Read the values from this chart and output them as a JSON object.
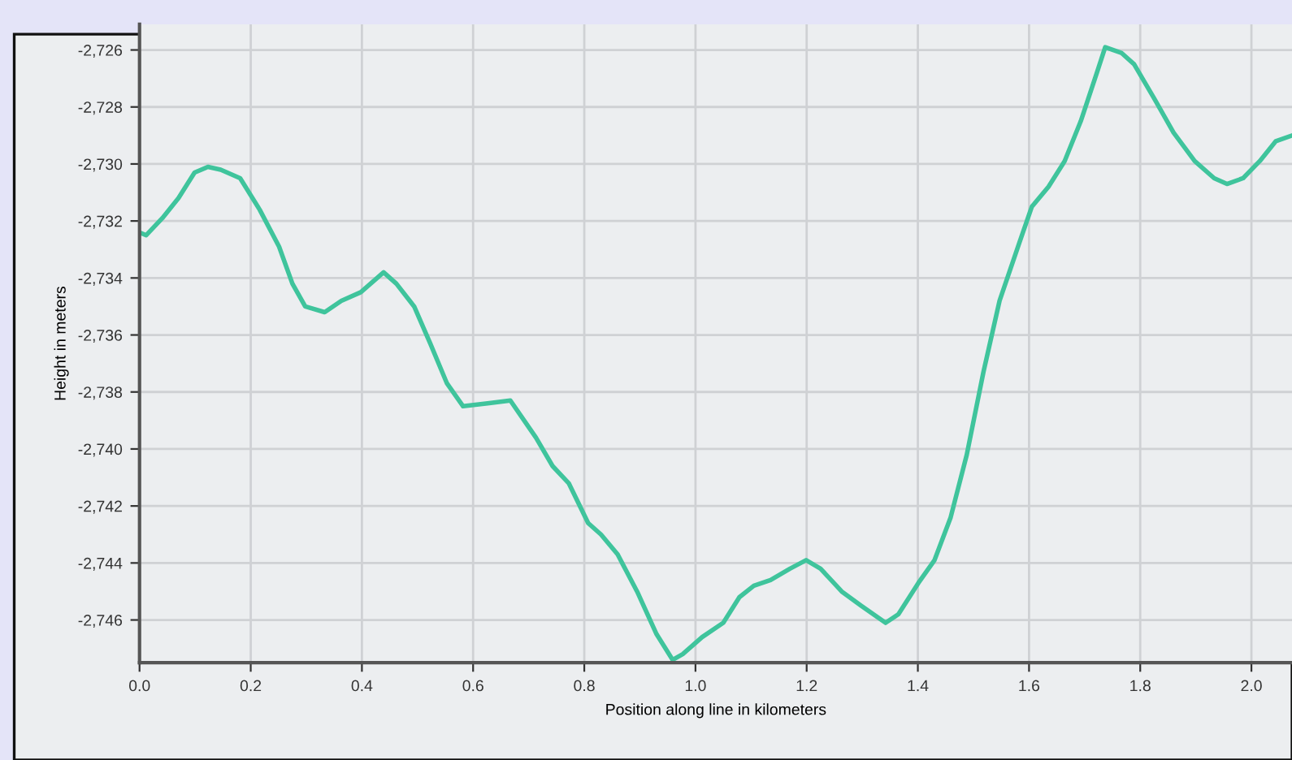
{
  "chart_data": {
    "type": "line",
    "xlabel": "Position along line in kilometers",
    "ylabel": "Height in meters",
    "xlim": [
      0,
      2.073
    ],
    "ylim": [
      -2747.5,
      -2725.1
    ],
    "xticks": [
      {
        "value": 0,
        "label": "0.0"
      },
      0.2,
      0.4,
      0.6,
      0.8,
      {
        "value": 1,
        "label": "1.0"
      },
      1.2,
      1.4,
      1.6,
      1.8,
      {
        "value": 2,
        "label": "2.0"
      }
    ],
    "yticks": [
      {
        "value": -2746,
        "label": "-2,746"
      },
      {
        "value": -2744,
        "label": "-2,744"
      },
      {
        "value": -2742,
        "label": "-2,742"
      },
      {
        "value": -2740,
        "label": "-2,740"
      },
      {
        "value": -2738,
        "label": "-2,738"
      },
      {
        "value": -2736,
        "label": "-2,736"
      },
      {
        "value": -2734,
        "label": "-2,734"
      },
      {
        "value": -2732,
        "label": "-2,732"
      },
      {
        "value": -2730,
        "label": "-2,730"
      },
      {
        "value": -2728,
        "label": "-2,728"
      },
      {
        "value": -2726,
        "label": "-2,726"
      }
    ],
    "grid": true,
    "marker": "none",
    "line_style": "solid",
    "x": [
      0.0,
      0.012,
      0.041,
      0.07,
      0.099,
      0.123,
      0.146,
      0.181,
      0.216,
      0.251,
      0.275,
      0.298,
      0.333,
      0.363,
      0.398,
      0.439,
      0.462,
      0.494,
      0.523,
      0.553,
      0.582,
      0.626,
      0.667,
      0.713,
      0.743,
      0.772,
      0.807,
      0.83,
      0.86,
      0.895,
      0.93,
      0.959,
      0.977,
      1.012,
      1.05,
      1.079,
      1.105,
      1.135,
      1.17,
      1.199,
      1.225,
      1.263,
      1.298,
      1.342,
      1.365,
      1.401,
      1.43,
      1.459,
      1.488,
      1.518,
      1.547,
      1.582,
      1.605,
      1.635,
      1.664,
      1.693,
      1.722,
      1.737,
      1.766,
      1.789,
      1.825,
      1.86,
      1.898,
      1.933,
      1.956,
      1.985,
      2.015,
      2.044,
      2.073
    ],
    "series": [
      {
        "color": "#3fc49c",
        "values": [
          -2732.4,
          -2732.5,
          -2731.9,
          -2731.2,
          -2730.3,
          -2730.1,
          -2730.2,
          -2730.5,
          -2731.6,
          -2732.9,
          -2734.2,
          -2735.0,
          -2735.2,
          -2734.8,
          -2734.5,
          -2733.8,
          -2734.2,
          -2735.0,
          -2736.3,
          -2737.7,
          -2738.5,
          -2738.4,
          -2738.3,
          -2739.6,
          -2740.6,
          -2741.2,
          -2742.6,
          -2743.0,
          -2743.7,
          -2745.0,
          -2746.5,
          -2747.4,
          -2747.2,
          -2746.6,
          -2746.1,
          -2745.2,
          -2744.8,
          -2744.6,
          -2744.2,
          -2743.9,
          -2744.2,
          -2745.0,
          -2745.5,
          -2746.1,
          -2745.8,
          -2744.7,
          -2743.9,
          -2742.4,
          -2740.2,
          -2737.3,
          -2734.8,
          -2732.8,
          -2731.5,
          -2730.8,
          -2729.9,
          -2728.5,
          -2726.8,
          -2725.9,
          -2726.1,
          -2726.5,
          -2727.7,
          -2728.9,
          -2729.9,
          -2730.5,
          -2730.7,
          -2730.5,
          -2729.9,
          -2729.2,
          -2729.0
        ]
      }
    ]
  }
}
